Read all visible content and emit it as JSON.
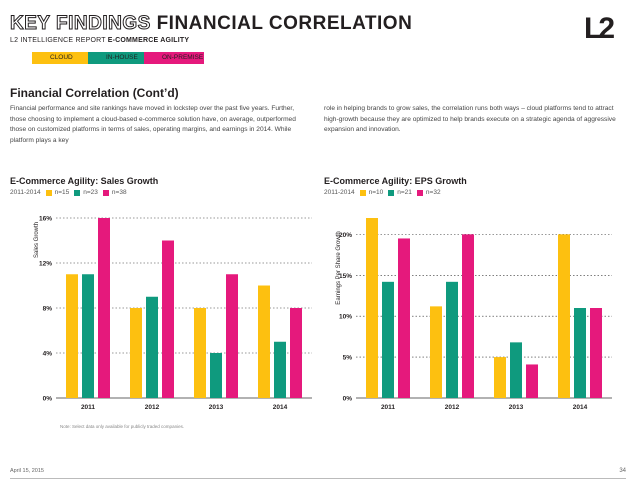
{
  "header": {
    "title_outline": "KEY FINDINGS",
    "title_solid": "FINANCIAL CORRELATION",
    "subtitle_prefix": "L2 INTELLIGENCE REPORT",
    "subtitle_main": "E-COMMERCE AGILITY",
    "logo": "L2"
  },
  "legend": [
    {
      "label": "CLOUD",
      "color": "#FDC010"
    },
    {
      "label": "IN-HOUSE",
      "color": "#0F9A7E"
    },
    {
      "label": "ON-PREMISE",
      "color": "#E5197C"
    }
  ],
  "section": {
    "heading": "Financial Correlation (Cont’d)",
    "para_left": "Financial performance and site rankings have moved in lockstep over the past five years. Further, those choosing to implement a cloud-based e-commerce solution have, on average, outperformed those on customized platforms in terms of sales, operating margins, and earnings in 2014. While platform plays a key",
    "para_right": "role in helping brands to grow sales, the correlation runs both ways – cloud platforms tend to attract high-growth because they are optimized to help brands execute on a strategic agenda of aggressive expansion and innovation."
  },
  "chart_data": [
    {
      "type": "bar",
      "title": "E-Commerce Agility: Sales Growth",
      "period": "2011-2014",
      "ylabel": "Sales Growth",
      "categories": [
        "2011",
        "2012",
        "2013",
        "2014"
      ],
      "yticks": [
        "0%",
        "4%",
        "8%",
        "12%",
        "16%"
      ],
      "ylim": [
        0,
        16
      ],
      "grid": true,
      "series": [
        {
          "name": "n=15",
          "color": "#FDC010",
          "values": [
            11,
            8,
            8,
            10
          ]
        },
        {
          "name": "n=23",
          "color": "#0F9A7E",
          "values": [
            11,
            9,
            4,
            5
          ]
        },
        {
          "name": "n=38",
          "color": "#E5197C",
          "values": [
            16,
            14,
            11,
            8
          ]
        }
      ]
    },
    {
      "type": "bar",
      "title": "E-Commerce Agility: EPS Growth",
      "period": "2011-2014",
      "ylabel": "Earnings Per Share Growth",
      "categories": [
        "2011",
        "2012",
        "2013",
        "2014"
      ],
      "yticks": [
        "0%",
        "5%",
        "10%",
        "15%",
        "20%"
      ],
      "ylim": [
        0,
        22
      ],
      "grid": true,
      "series": [
        {
          "name": "n=10",
          "color": "#FDC010",
          "values": [
            22,
            11.2,
            5,
            20
          ]
        },
        {
          "name": "n=21",
          "color": "#0F9A7E",
          "values": [
            14.2,
            14.2,
            6.8,
            11
          ]
        },
        {
          "name": "n=32",
          "color": "#E5197C",
          "values": [
            19.5,
            20,
            4.1,
            11
          ]
        }
      ]
    }
  ],
  "note": "Note: Select data only available for publicly traded companies.",
  "footer": {
    "date": "April 15, 2015",
    "page": "34"
  }
}
